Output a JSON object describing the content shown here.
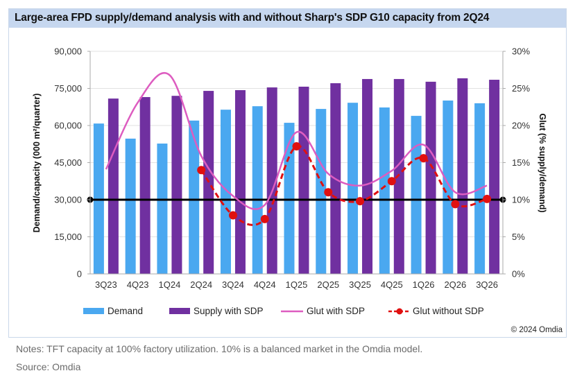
{
  "title": "Large-area FPD supply/demand analysis with and without Sharp's SDP G10 capacity from 2Q24",
  "copyright": "© 2024 Omdia",
  "notes": "Notes: TFT capacity at 100% factory utilization. 10% is a balanced market in the Omdia model.",
  "source": "Source: Omdia",
  "colors": {
    "demand": "#4aa8f0",
    "supply": "#7030a0",
    "glut_with": "#dd5cc0",
    "glut_without": "#e01010",
    "balance_line": "#000000",
    "gridline": "#e2e2e2"
  },
  "legend": [
    {
      "label": "Demand",
      "key": "demand"
    },
    {
      "label": "Supply with SDP",
      "key": "supply"
    },
    {
      "label": "Glut with SDP",
      "key": "glut_with"
    },
    {
      "label": "Glut without SDP",
      "key": "glut_without"
    }
  ],
  "chart_data": {
    "type": "bar",
    "title": "Large-area FPD supply/demand analysis with and without Sharp's SDP G10 capacity from 2Q24",
    "categories": [
      "3Q23",
      "4Q23",
      "1Q24",
      "2Q24",
      "3Q24",
      "4Q24",
      "1Q25",
      "2Q25",
      "3Q25",
      "4Q25",
      "1Q26",
      "2Q26",
      "3Q26"
    ],
    "ylabel": "Demand/capacity (000 m²/quarter)",
    "y2label": "Glut (% supply/demand)",
    "ylim": [
      0,
      90000
    ],
    "y2lim": [
      0,
      30
    ],
    "yticks": [
      "0",
      "15,000",
      "30,000",
      "45,000",
      "60,000",
      "75,000",
      "90,000"
    ],
    "y2ticks": [
      "0%",
      "5%",
      "10%",
      "15%",
      "20%",
      "25%",
      "30%"
    ],
    "grid": true,
    "legend_position": "bottom",
    "series": [
      {
        "name": "Demand",
        "type": "bar",
        "axis": "left",
        "values": [
          60800,
          54700,
          52700,
          62000,
          66400,
          67800,
          61100,
          66700,
          69200,
          67300,
          63900,
          70100,
          69000
        ]
      },
      {
        "name": "Supply with SDP",
        "type": "bar",
        "axis": "left",
        "values": [
          70900,
          71500,
          72000,
          74000,
          74300,
          75400,
          75700,
          77100,
          78800,
          78800,
          77700,
          79100,
          78500
        ]
      },
      {
        "name": "Glut with SDP",
        "type": "line",
        "axis": "right",
        "smooth": true,
        "values": [
          14.1,
          23.1,
          26.8,
          15.9,
          10.5,
          9.3,
          19.1,
          13.5,
          11.9,
          13.9,
          17.4,
          11.0,
          11.9
        ]
      },
      {
        "name": "Glut without SDP",
        "type": "line",
        "axis": "right",
        "smooth": true,
        "dashed": true,
        "markers": true,
        "values": [
          null,
          null,
          null,
          14.0,
          7.9,
          7.4,
          17.2,
          11.0,
          9.8,
          12.5,
          15.6,
          9.4,
          10.1
        ]
      }
    ],
    "reference_line": {
      "name": "Balanced market",
      "axis": "right",
      "value": 10
    }
  }
}
